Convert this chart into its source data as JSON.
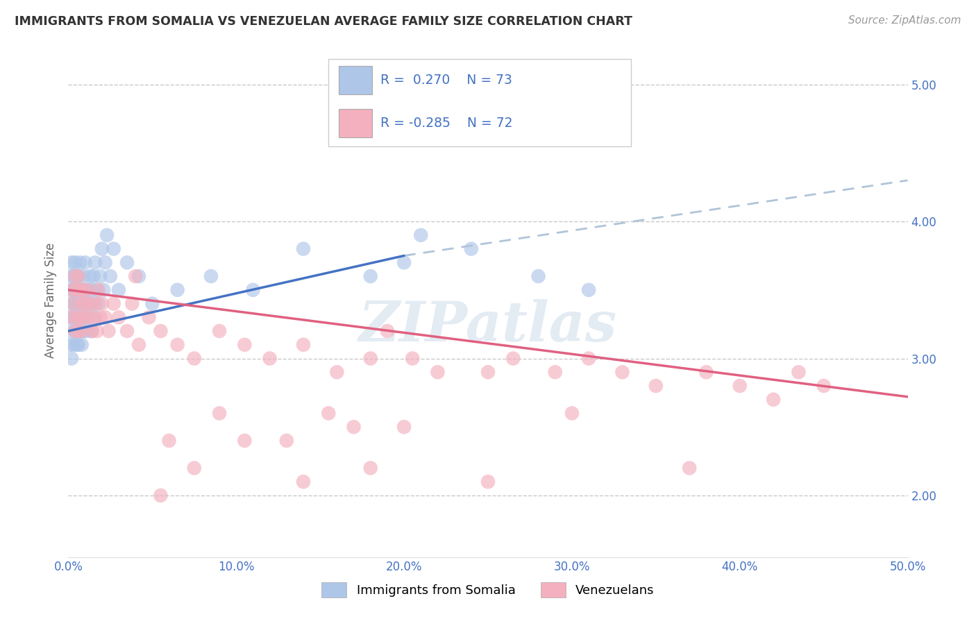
{
  "title": "IMMIGRANTS FROM SOMALIA VS VENEZUELAN AVERAGE FAMILY SIZE CORRELATION CHART",
  "source": "Source: ZipAtlas.com",
  "ylabel": "Average Family Size",
  "xlim": [
    0.0,
    0.5
  ],
  "ylim": [
    1.55,
    5.3
  ],
  "yticks": [
    2.0,
    3.0,
    4.0,
    5.0
  ],
  "xticks": [
    0.0,
    0.1,
    0.2,
    0.3,
    0.4,
    0.5
  ],
  "xtick_labels": [
    "0.0%",
    "10.0%",
    "20.0%",
    "30.0%",
    "40.0%",
    "50.0%"
  ],
  "somalia_R": 0.27,
  "somalia_N": 73,
  "venezuela_R": -0.285,
  "venezuela_N": 72,
  "somalia_color": "#aec6e8",
  "venezuela_color": "#f4b0be",
  "somalia_line_color": "#4472c4",
  "venezuela_line_color": "#e06080",
  "dashed_line_color": "#b0c4d8",
  "background_color": "#ffffff",
  "grid_color": "#c8c8c8",
  "watermark": "ZIPatlas",
  "legend_label_somalia": "Immigrants from Somalia",
  "legend_label_venezuela": "Venezuelans",
  "title_color": "#333333",
  "axis_label_color": "#4472c4",
  "tick_color": "#4472c4",
  "somalia_trend_x0": 0.0,
  "somalia_trend_y0": 3.2,
  "somalia_trend_x1": 0.2,
  "somalia_trend_y1": 3.75,
  "somalia_trend_dash_x1": 0.5,
  "somalia_trend_dash_y1": 4.3,
  "venezuela_trend_x0": 0.0,
  "venezuela_trend_y0": 3.5,
  "venezuela_trend_x1": 0.5,
  "venezuela_trend_y1": 2.72,
  "somalia_scatter_x": [
    0.001,
    0.001,
    0.001,
    0.002,
    0.002,
    0.002,
    0.002,
    0.002,
    0.003,
    0.003,
    0.003,
    0.003,
    0.003,
    0.004,
    0.004,
    0.004,
    0.004,
    0.005,
    0.005,
    0.005,
    0.005,
    0.005,
    0.006,
    0.006,
    0.006,
    0.006,
    0.007,
    0.007,
    0.007,
    0.008,
    0.008,
    0.008,
    0.009,
    0.009,
    0.009,
    0.01,
    0.01,
    0.01,
    0.011,
    0.011,
    0.012,
    0.012,
    0.013,
    0.013,
    0.014,
    0.014,
    0.015,
    0.015,
    0.016,
    0.016,
    0.017,
    0.018,
    0.019,
    0.02,
    0.021,
    0.022,
    0.023,
    0.025,
    0.027,
    0.03,
    0.035,
    0.042,
    0.05,
    0.065,
    0.085,
    0.11,
    0.14,
    0.18,
    0.2,
    0.21,
    0.24,
    0.28,
    0.31
  ],
  "somalia_scatter_y": [
    3.3,
    3.5,
    3.1,
    3.6,
    3.2,
    3.4,
    3.0,
    3.7,
    3.3,
    3.5,
    3.1,
    3.4,
    3.6,
    3.2,
    3.5,
    3.3,
    3.7,
    3.1,
    3.4,
    3.6,
    3.2,
    3.5,
    3.3,
    3.1,
    3.6,
    3.4,
    3.2,
    3.5,
    3.7,
    3.3,
    3.5,
    3.1,
    3.4,
    3.2,
    3.6,
    3.3,
    3.5,
    3.7,
    3.4,
    3.2,
    3.5,
    3.3,
    3.6,
    3.4,
    3.2,
    3.5,
    3.4,
    3.6,
    3.3,
    3.7,
    3.5,
    3.4,
    3.6,
    3.8,
    3.5,
    3.7,
    3.9,
    3.6,
    3.8,
    3.5,
    3.7,
    3.6,
    3.4,
    3.5,
    3.6,
    3.5,
    3.8,
    3.6,
    3.7,
    3.9,
    3.8,
    3.6,
    3.5
  ],
  "venezuela_scatter_x": [
    0.001,
    0.002,
    0.003,
    0.004,
    0.004,
    0.005,
    0.005,
    0.006,
    0.006,
    0.007,
    0.007,
    0.008,
    0.008,
    0.009,
    0.009,
    0.01,
    0.011,
    0.012,
    0.013,
    0.014,
    0.015,
    0.016,
    0.017,
    0.018,
    0.019,
    0.02,
    0.022,
    0.024,
    0.027,
    0.03,
    0.035,
    0.038,
    0.042,
    0.048,
    0.055,
    0.065,
    0.075,
    0.09,
    0.105,
    0.12,
    0.14,
    0.16,
    0.18,
    0.19,
    0.205,
    0.22,
    0.25,
    0.265,
    0.29,
    0.31,
    0.33,
    0.35,
    0.38,
    0.4,
    0.42,
    0.435,
    0.45,
    0.17,
    0.09,
    0.06,
    0.2,
    0.3,
    0.105,
    0.13,
    0.155,
    0.25,
    0.075,
    0.04,
    0.18,
    0.37,
    0.055,
    0.14
  ],
  "venezuela_scatter_y": [
    3.3,
    3.5,
    3.4,
    3.6,
    3.2,
    3.5,
    3.3,
    3.6,
    3.2,
    3.5,
    3.3,
    3.4,
    3.2,
    3.5,
    3.3,
    3.4,
    3.5,
    3.3,
    3.4,
    3.2,
    3.3,
    3.4,
    3.2,
    3.5,
    3.3,
    3.4,
    3.3,
    3.2,
    3.4,
    3.3,
    3.2,
    3.4,
    3.1,
    3.3,
    3.2,
    3.1,
    3.0,
    3.2,
    3.1,
    3.0,
    3.1,
    2.9,
    3.0,
    3.2,
    3.0,
    2.9,
    2.9,
    3.0,
    2.9,
    3.0,
    2.9,
    2.8,
    2.9,
    2.8,
    2.7,
    2.9,
    2.8,
    2.5,
    2.6,
    2.4,
    2.5,
    2.6,
    2.4,
    2.4,
    2.6,
    2.1,
    2.2,
    3.6,
    2.2,
    2.2,
    2.0,
    2.1
  ]
}
